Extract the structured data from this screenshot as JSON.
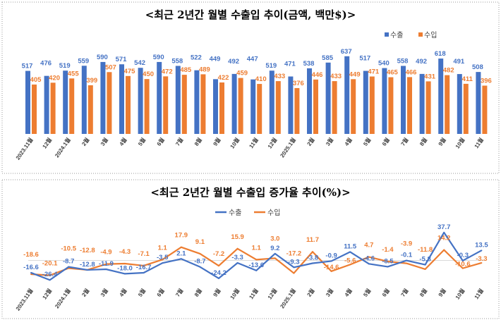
{
  "chart_data": [
    {
      "type": "bar",
      "title": "<최근 2년간 월별 수출입 추이(금액, 백만$)>",
      "categories": [
        "2023.11월",
        "12월",
        "2024.1월",
        "2월",
        "3월",
        "4월",
        "5월",
        "6월",
        "7월",
        "8월",
        "9월",
        "10월",
        "11월",
        "12월",
        "2025.1월",
        "2월",
        "3월",
        "4월",
        "5월",
        "6월",
        "7월",
        "8월",
        "9월",
        "10월",
        "11월"
      ],
      "series": [
        {
          "name": "수출",
          "color": "#4472C4",
          "values": [
            517,
            476,
            519,
            559,
            590,
            571,
            542,
            590,
            558,
            522,
            449,
            492,
            447,
            519,
            471,
            538,
            585,
            637,
            517,
            540,
            558,
            492,
            618,
            491,
            508
          ]
        },
        {
          "name": "수입",
          "color": "#ED7D31",
          "values": [
            405,
            420,
            455,
            399,
            507,
            475,
            450,
            472,
            485,
            489,
            422,
            459,
            410,
            433,
            376,
            446,
            433,
            449,
            471,
            465,
            466,
            431,
            482,
            411,
            396
          ]
        }
      ],
      "legend": "top-right",
      "grid": false
    },
    {
      "type": "line",
      "title": "<최근 2년간 월별 수출입 증가율 추이(%)>",
      "categories": [
        "2023.11월",
        "12월",
        "2024.1월",
        "2월",
        "3월",
        "4월",
        "5월",
        "6월",
        "7월",
        "8월",
        "9월",
        "10월",
        "11월",
        "12월",
        "2025.1월",
        "2월",
        "3월",
        "4월",
        "5월",
        "6월",
        "7월",
        "8월",
        "9월",
        "10월",
        "11월"
      ],
      "series": [
        {
          "name": "수출",
          "color": "#4472C4",
          "values": [
            -16.6,
            -26.4,
            -8.7,
            -12.8,
            -11.9,
            -18.0,
            -16.7,
            -3.5,
            2.1,
            -8.7,
            -24.2,
            -3.3,
            -13.6,
            9.2,
            -9.3,
            -3.8,
            -0.9,
            11.5,
            -4.6,
            -8.5,
            -0.1,
            -5.8,
            37.7,
            -0.3,
            13.5
          ]
        },
        {
          "name": "수입",
          "color": "#ED7D31",
          "values": [
            -18.6,
            -20.1,
            -10.5,
            -12.8,
            -4.9,
            -4.3,
            -7.1,
            1.1,
            17.9,
            9.1,
            -7.2,
            15.9,
            1.1,
            3.0,
            -17.2,
            11.7,
            -14.6,
            -5.6,
            4.7,
            -1.4,
            -3.9,
            -11.8,
            14.2,
            -10.6,
            -3.3
          ]
        }
      ],
      "legend": "top-center",
      "grid": false
    }
  ]
}
